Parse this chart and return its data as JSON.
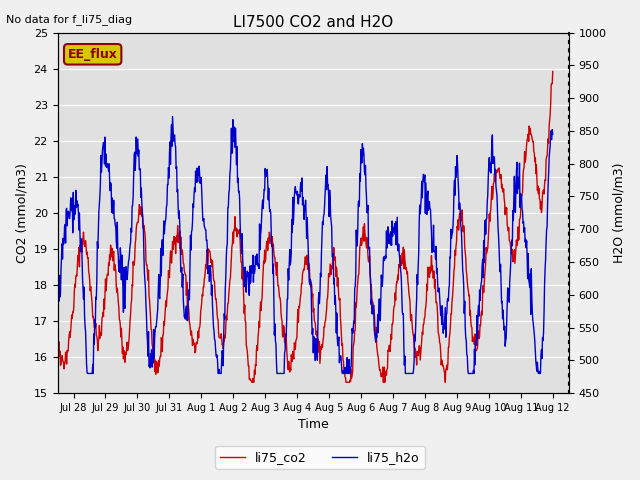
{
  "title": "LI7500 CO2 and H2O",
  "top_left_text": "No data for f_li75_diag",
  "annotation_box": "EE_flux",
  "xlabel": "Time",
  "ylabel_left": "CO2 (mmol/m3)",
  "ylabel_right": "H2O (mmol/m3)",
  "co2_ylim": [
    15.0,
    25.0
  ],
  "h2o_ylim": [
    450,
    1000
  ],
  "co2_yticks": [
    15.0,
    16.0,
    17.0,
    18.0,
    19.0,
    20.0,
    21.0,
    22.0,
    23.0,
    24.0,
    25.0
  ],
  "h2o_yticks": [
    450,
    500,
    550,
    600,
    650,
    700,
    750,
    800,
    850,
    900,
    950,
    1000
  ],
  "xtick_labels": [
    "Jul 28",
    "Jul 29",
    "Jul 30",
    "Jul 31",
    "Aug 1",
    "Aug 2",
    "Aug 3",
    "Aug 4",
    "Aug 5",
    "Aug 6",
    "Aug 7",
    "Aug 8",
    "Aug 9",
    "Aug 10",
    "Aug 11",
    "Aug 12"
  ],
  "legend_labels": [
    "li75_co2",
    "li75_h2o"
  ],
  "co2_color": "#cc0000",
  "h2o_color": "#0000cc",
  "bg_color": "#e0e0e0",
  "grid_color": "#ffffff",
  "annotation_bg": "#d4c800",
  "annotation_border": "#8b0000",
  "fig_bg": "#f0f0f0"
}
